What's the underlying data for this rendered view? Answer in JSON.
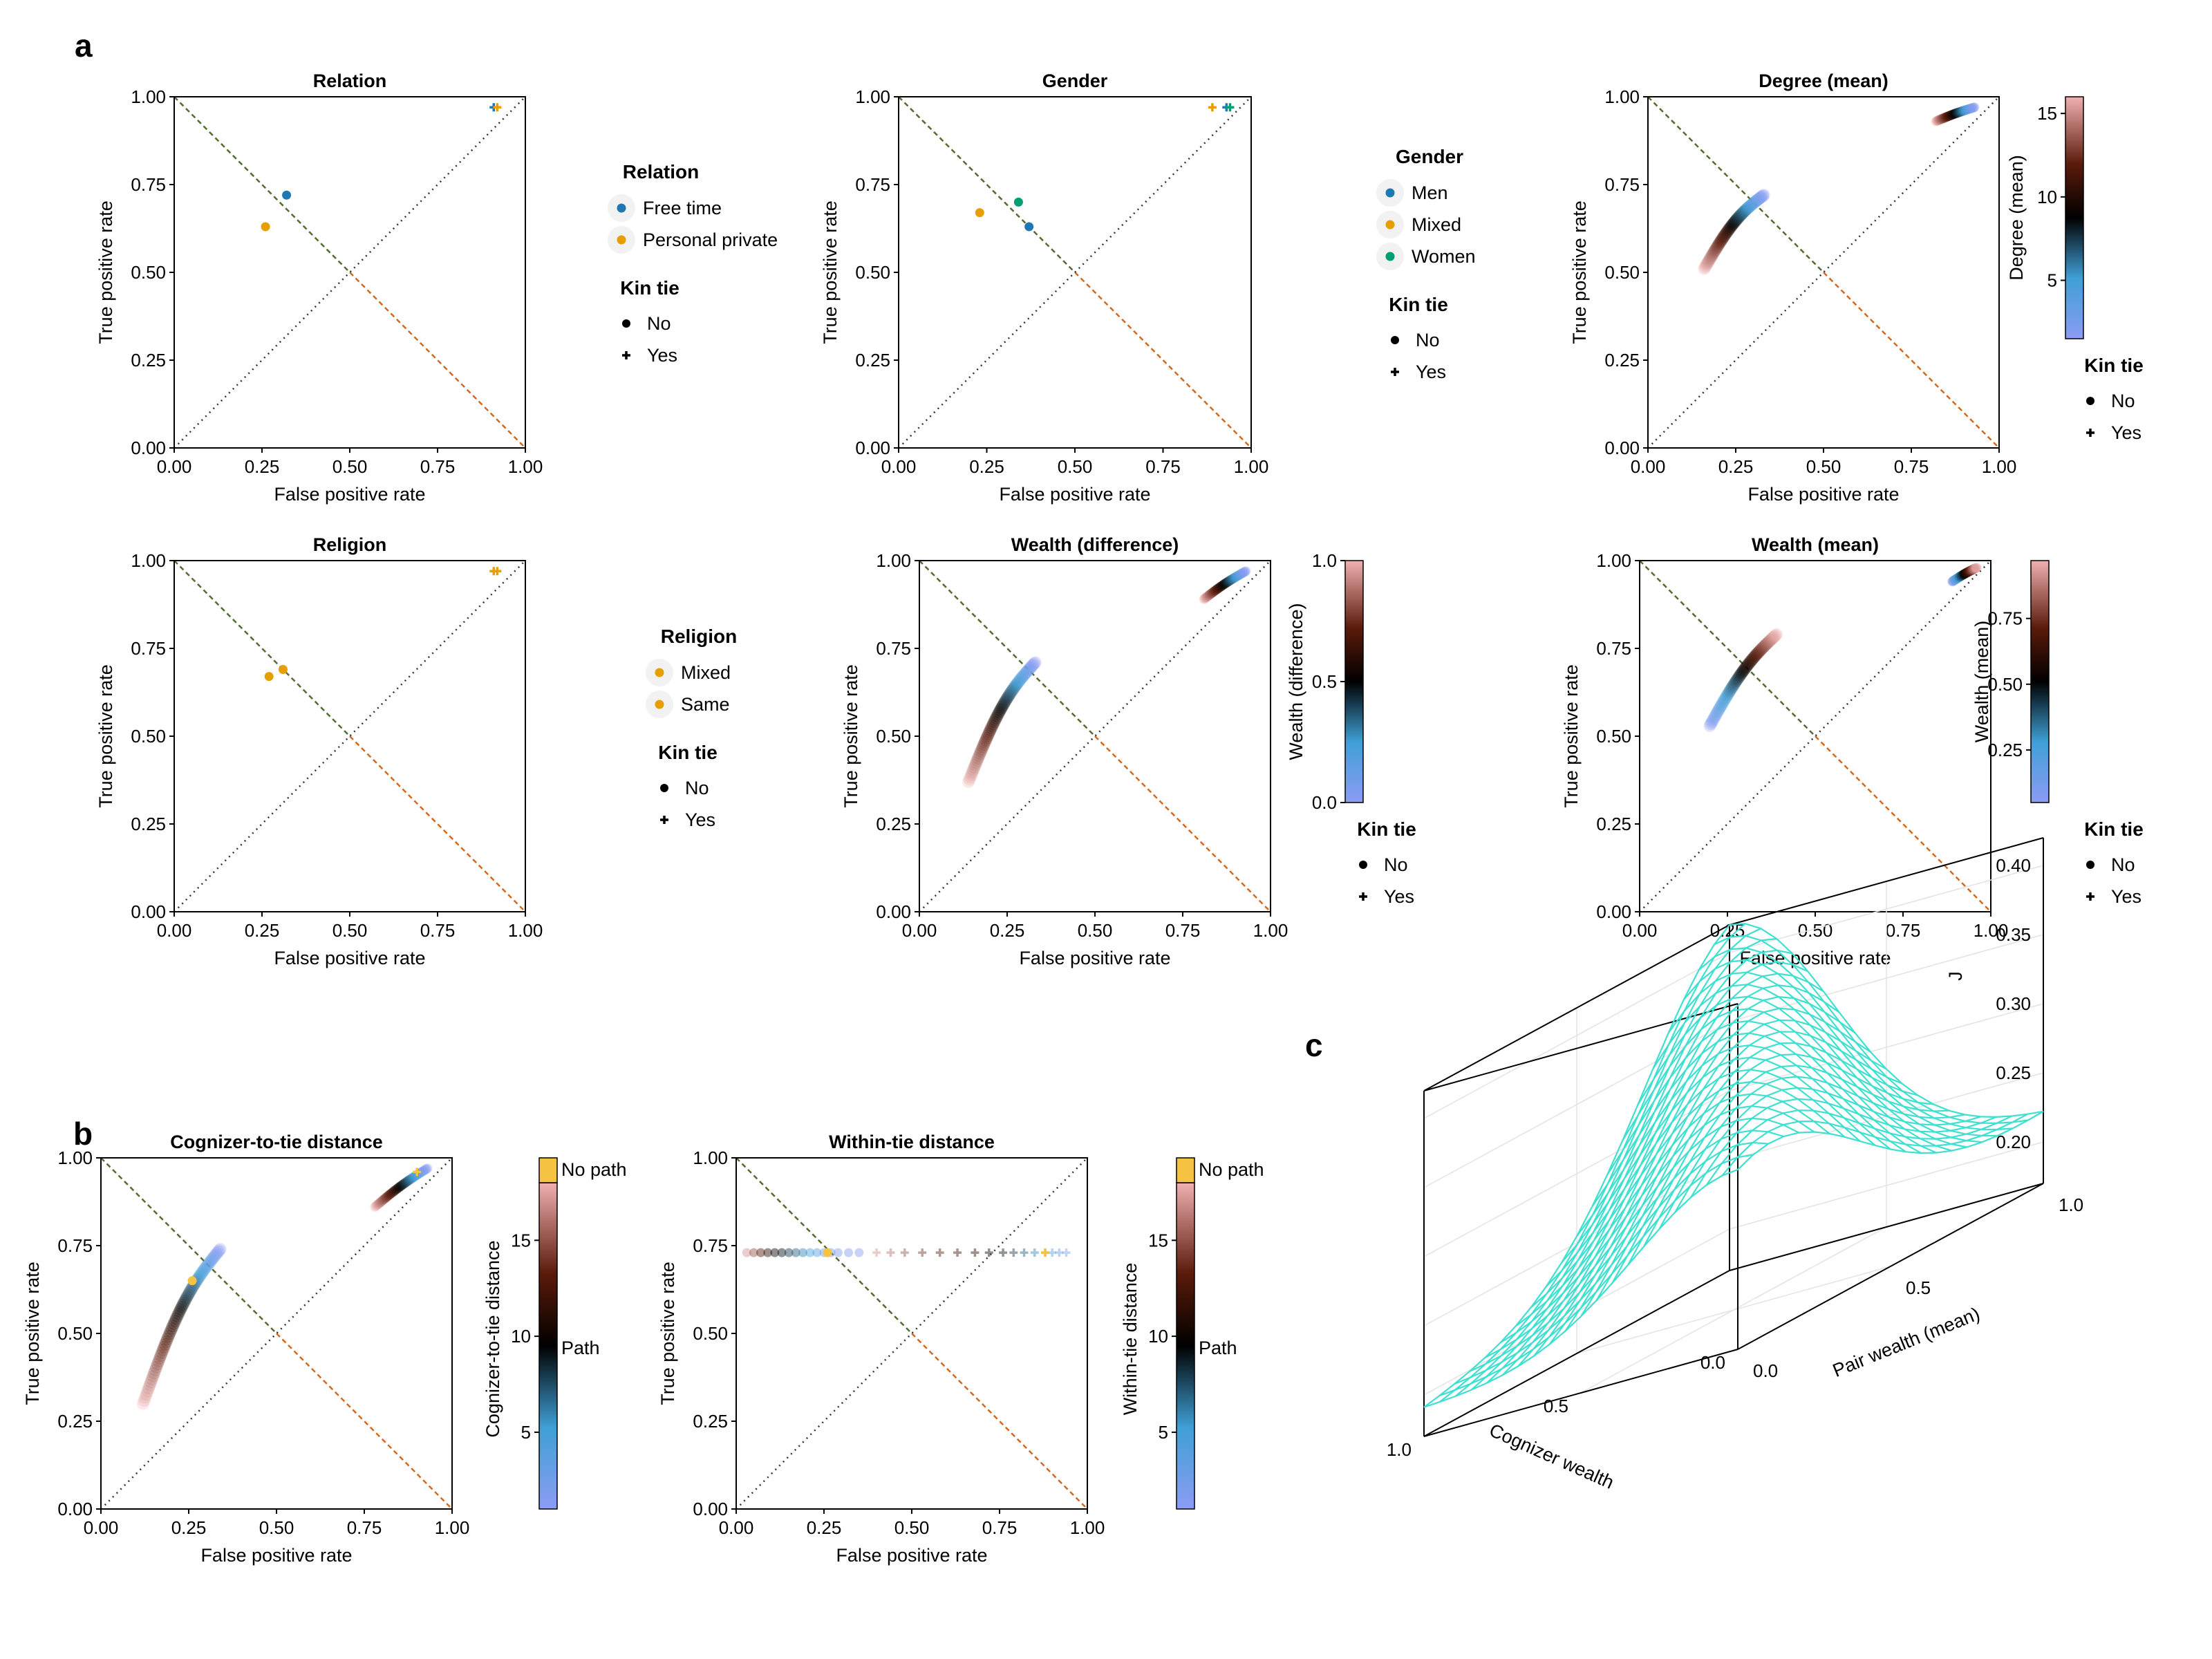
{
  "figure": {
    "panel_labels": [
      "a",
      "b",
      "c"
    ]
  },
  "colors": {
    "blue": "#1f77b4",
    "orange": "#e69f00",
    "green": "#009e73",
    "no_path": "#f5c242",
    "surface": "#40e0d0",
    "diag_green": "#556b2f",
    "diag_orange": "#d2691e",
    "colormap": [
      "#8c9cf4",
      "#3f9fd6",
      "#000000",
      "#5a1a0a",
      "#f0b0b0"
    ]
  },
  "kin_tie_legend": {
    "title": "Kin tie",
    "items": [
      "No",
      "Yes"
    ]
  },
  "colorbar_ticks": {
    "degree": [
      "5",
      "10",
      "15"
    ],
    "wealth_diff": [
      "0.0",
      "0.5",
      "1.0"
    ],
    "wealth_mean": [
      "0.25",
      "0.50",
      "0.75"
    ],
    "distance": [
      "5",
      "10",
      "15"
    ]
  },
  "colorbar_categories": [
    "No path",
    "Path"
  ],
  "surface3d": {
    "zlabel": "J",
    "xlabel": "Cognizer wealth",
    "ylabel": "Pair wealth (mean)",
    "zticks": [
      "0.20",
      "0.25",
      "0.30",
      "0.35",
      "0.40"
    ],
    "xticks": [
      "0.0",
      "0.5",
      "1.0"
    ],
    "yticks": [
      "0.0",
      "0.5",
      "1.0"
    ]
  },
  "chart_data": [
    {
      "type": "scatter",
      "panel": "a",
      "title": "Relation",
      "xlabel": "False positive rate",
      "ylabel": "True positive rate",
      "xlim": [
        0,
        1
      ],
      "ylim": [
        0,
        1
      ],
      "ticks": [
        "0.00",
        "0.25",
        "0.50",
        "0.75",
        "1.00"
      ],
      "legend": {
        "title": "Relation",
        "items": [
          "Free time",
          "Personal private"
        ]
      },
      "points": [
        {
          "x": 0.32,
          "y": 0.72,
          "group": "Free time",
          "kin": "No"
        },
        {
          "x": 0.26,
          "y": 0.63,
          "group": "Personal private",
          "kin": "No"
        },
        {
          "x": 0.91,
          "y": 0.97,
          "group": "Free time",
          "kin": "Yes"
        },
        {
          "x": 0.92,
          "y": 0.97,
          "group": "Personal private",
          "kin": "Yes"
        }
      ]
    },
    {
      "type": "scatter",
      "panel": "a",
      "title": "Gender",
      "xlabel": "False positive rate",
      "ylabel": "True positive rate",
      "xlim": [
        0,
        1
      ],
      "ylim": [
        0,
        1
      ],
      "ticks": [
        "0.00",
        "0.25",
        "0.50",
        "0.75",
        "1.00"
      ],
      "legend": {
        "title": "Gender",
        "items": [
          "Men",
          "Mixed",
          "Women"
        ]
      },
      "points": [
        {
          "x": 0.37,
          "y": 0.63,
          "group": "Men",
          "kin": "No"
        },
        {
          "x": 0.23,
          "y": 0.67,
          "group": "Mixed",
          "kin": "No"
        },
        {
          "x": 0.34,
          "y": 0.7,
          "group": "Women",
          "kin": "No"
        },
        {
          "x": 0.93,
          "y": 0.97,
          "group": "Men",
          "kin": "Yes"
        },
        {
          "x": 0.89,
          "y": 0.97,
          "group": "Mixed",
          "kin": "Yes"
        },
        {
          "x": 0.94,
          "y": 0.97,
          "group": "Women",
          "kin": "Yes"
        }
      ]
    },
    {
      "type": "scatter",
      "panel": "a",
      "title": "Degree (mean)",
      "xlabel": "False positive rate",
      "ylabel": "True positive rate",
      "xlim": [
        0,
        1
      ],
      "ylim": [
        0,
        1
      ],
      "ticks": [
        "0.00",
        "0.25",
        "0.50",
        "0.75",
        "1.00"
      ],
      "colorbar": {
        "label": "Degree (mean)",
        "range": [
          1.5,
          16
        ]
      },
      "curves": [
        {
          "kin": "No",
          "x": [
            0.16,
            0.33
          ],
          "y": [
            0.51,
            0.72
          ],
          "curvature": 0.25,
          "color_from": 16,
          "color_to": 1.5
        },
        {
          "kin": "Yes",
          "x": [
            0.82,
            0.93
          ],
          "y": [
            0.93,
            0.97
          ],
          "curvature": 0.1,
          "color_from": 16,
          "color_to": 1.5
        }
      ]
    },
    {
      "type": "scatter",
      "panel": "a",
      "title": "Religion",
      "xlabel": "False positive rate",
      "ylabel": "True positive rate",
      "xlim": [
        0,
        1
      ],
      "ylim": [
        0,
        1
      ],
      "ticks": [
        "0.00",
        "0.25",
        "0.50",
        "0.75",
        "1.00"
      ],
      "legend": {
        "title": "Religion",
        "items": [
          "Mixed",
          "Same"
        ]
      },
      "points": [
        {
          "x": 0.27,
          "y": 0.67,
          "group": "Mixed",
          "kin": "No"
        },
        {
          "x": 0.31,
          "y": 0.69,
          "group": "Same",
          "kin": "No"
        },
        {
          "x": 0.91,
          "y": 0.97,
          "group": "Mixed",
          "kin": "Yes"
        },
        {
          "x": 0.92,
          "y": 0.97,
          "group": "Same",
          "kin": "Yes"
        }
      ]
    },
    {
      "type": "scatter",
      "panel": "a",
      "title": "Wealth (difference)",
      "xlabel": "False positive rate",
      "ylabel": "True positive rate",
      "xlim": [
        0,
        1
      ],
      "ylim": [
        0,
        1
      ],
      "ticks": [
        "0.00",
        "0.25",
        "0.50",
        "0.75",
        "1.00"
      ],
      "colorbar": {
        "label": "Wealth (difference)",
        "range": [
          0,
          1
        ]
      },
      "curves": [
        {
          "kin": "No",
          "x": [
            0.14,
            0.33
          ],
          "y": [
            0.37,
            0.71
          ],
          "curvature": 0.25,
          "color_from": 1.0,
          "color_to": 0.0
        },
        {
          "kin": "Yes",
          "x": [
            0.81,
            0.93
          ],
          "y": [
            0.89,
            0.97
          ],
          "curvature": 0.1,
          "color_from": 1.0,
          "color_to": 0.0
        }
      ]
    },
    {
      "type": "scatter",
      "panel": "a",
      "title": "Wealth (mean)",
      "xlabel": "False positive rate",
      "ylabel": "True positive rate",
      "xlim": [
        0,
        1
      ],
      "ylim": [
        0,
        1
      ],
      "ticks": [
        "0.00",
        "0.25",
        "0.50",
        "0.75",
        "1.00"
      ],
      "colorbar": {
        "label": "Wealth (mean)",
        "range": [
          0.05,
          0.97
        ]
      },
      "curves": [
        {
          "kin": "No",
          "x": [
            0.2,
            0.39
          ],
          "y": [
            0.53,
            0.79
          ],
          "curvature": 0.2,
          "color_from": 0.05,
          "color_to": 0.97
        },
        {
          "kin": "Yes",
          "x": [
            0.89,
            0.96
          ],
          "y": [
            0.94,
            0.98
          ],
          "curvature": 0.1,
          "color_from": 0.05,
          "color_to": 0.97
        }
      ]
    },
    {
      "type": "scatter",
      "panel": "b",
      "title": "Cognizer-to-tie distance",
      "xlabel": "False positive rate",
      "ylabel": "True positive rate",
      "xlim": [
        0,
        1
      ],
      "ylim": [
        0,
        1
      ],
      "ticks": [
        "0.00",
        "0.25",
        "0.50",
        "0.75",
        "1.00"
      ],
      "colorbar": {
        "label": "Cognizer-to-tie distance",
        "range": [
          1,
          18
        ]
      },
      "curves": [
        {
          "kin": "No",
          "x": [
            0.12,
            0.34
          ],
          "y": [
            0.3,
            0.74
          ],
          "curvature": 0.25,
          "color_from": 18,
          "color_to": 1
        },
        {
          "kin": "Yes",
          "x": [
            0.78,
            0.93
          ],
          "y": [
            0.86,
            0.97
          ],
          "curvature": 0.1,
          "color_from": 18,
          "color_to": 1
        }
      ],
      "points": [
        {
          "x": 0.26,
          "y": 0.65,
          "group": "No path",
          "kin": "No"
        },
        {
          "x": 0.9,
          "y": 0.96,
          "group": "No path",
          "kin": "Yes"
        }
      ]
    },
    {
      "type": "scatter",
      "panel": "b",
      "title": "Within-tie distance",
      "xlabel": "False positive rate",
      "ylabel": "True positive rate",
      "xlim": [
        0,
        1
      ],
      "ylim": [
        0,
        1
      ],
      "ticks": [
        "0.00",
        "0.25",
        "0.50",
        "0.75",
        "1.00"
      ],
      "colorbar": {
        "label": "Within-tie distance",
        "range": [
          1,
          18
        ]
      },
      "rows": [
        {
          "kin": "No",
          "y": 0.73,
          "x": [
            0.03,
            0.05,
            0.07,
            0.09,
            0.11,
            0.13,
            0.15,
            0.17,
            0.19,
            0.21,
            0.23,
            0.25,
            0.27,
            0.29,
            0.32,
            0.35
          ],
          "values": [
            17,
            15,
            13,
            11,
            10,
            9,
            8,
            7,
            6,
            5,
            4,
            3,
            2.5,
            2,
            1.5,
            1
          ]
        },
        {
          "kin": "Yes",
          "y": 0.73,
          "x": [
            0.4,
            0.44,
            0.48,
            0.53,
            0.58,
            0.63,
            0.68,
            0.72,
            0.76,
            0.79,
            0.82,
            0.85,
            0.88,
            0.9,
            0.92,
            0.94
          ],
          "values": [
            17,
            16,
            15,
            14,
            13,
            12,
            11,
            10,
            9,
            8,
            7,
            6,
            5,
            4,
            3,
            2
          ]
        }
      ],
      "points": [
        {
          "x": 0.26,
          "y": 0.73,
          "group": "No path",
          "kin": "No"
        },
        {
          "x": 0.88,
          "y": 0.73,
          "group": "No path",
          "kin": "Yes"
        }
      ]
    }
  ]
}
